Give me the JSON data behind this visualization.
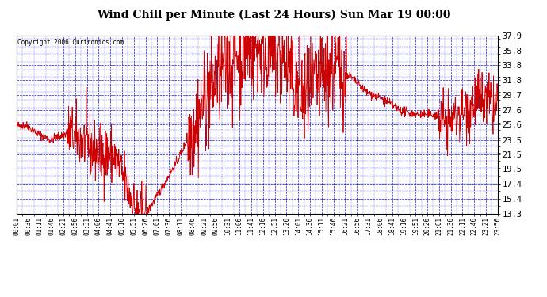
{
  "title": "Wind Chill per Minute (Last 24 Hours) Sun Mar 19 00:00",
  "copyright": "Copyright 2006 Curtronics.com",
  "yticks": [
    13.3,
    15.4,
    17.4,
    19.5,
    21.5,
    23.5,
    25.6,
    27.6,
    29.7,
    31.8,
    33.8,
    35.8,
    37.9
  ],
  "ylim": [
    13.3,
    37.9
  ],
  "background_color": "#ffffff",
  "plot_bg_color": "#ffffff",
  "line_color": "#cc0000",
  "grid_color": "#0000cc",
  "title_color": "#000000",
  "xtick_labels": [
    "00:01",
    "00:36",
    "01:11",
    "01:46",
    "02:21",
    "02:56",
    "03:31",
    "04:06",
    "04:41",
    "05:16",
    "05:51",
    "06:26",
    "07:01",
    "07:36",
    "08:11",
    "08:46",
    "09:21",
    "09:56",
    "10:31",
    "11:06",
    "11:41",
    "12:16",
    "12:51",
    "13:26",
    "14:01",
    "14:36",
    "15:11",
    "15:46",
    "16:21",
    "16:56",
    "17:31",
    "18:06",
    "18:41",
    "19:16",
    "19:51",
    "20:26",
    "21:01",
    "21:36",
    "22:11",
    "22:46",
    "23:21",
    "23:56"
  ],
  "num_points": 1440
}
